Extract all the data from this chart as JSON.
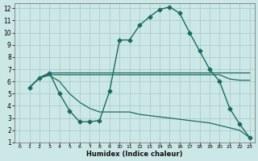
{
  "xlabel": "Humidex (Indice chaleur)",
  "bg_color": "#cce8e6",
  "grid_color": "#aaccca",
  "line_color": "#1a6b60",
  "xlim": [
    -0.5,
    23.5
  ],
  "ylim": [
    1,
    12.4
  ],
  "xticks": [
    0,
    1,
    2,
    3,
    4,
    5,
    6,
    7,
    8,
    9,
    10,
    11,
    12,
    13,
    14,
    15,
    16,
    17,
    18,
    19,
    20,
    21,
    22,
    23
  ],
  "yticks": [
    1,
    2,
    3,
    4,
    5,
    6,
    7,
    8,
    9,
    10,
    11,
    12
  ],
  "series": [
    {
      "x": [
        1,
        2,
        3,
        4,
        5,
        6,
        7,
        8,
        9,
        10,
        11,
        12,
        13,
        14,
        15,
        16,
        17,
        18,
        19,
        20,
        21,
        22,
        23
      ],
      "y": [
        5.5,
        6.3,
        6.7,
        5.0,
        3.6,
        2.7,
        2.7,
        2.8,
        5.2,
        9.4,
        9.4,
        10.6,
        11.3,
        11.9,
        12.1,
        11.6,
        10.0,
        8.5,
        7.0,
        6.0,
        3.8,
        2.5,
        1.4
      ],
      "marker": "D",
      "markersize": 2.5,
      "linewidth": 1.0
    },
    {
      "x": [
        1,
        2,
        3,
        4,
        5,
        6,
        7,
        8,
        9,
        10,
        11,
        12,
        13,
        14,
        15,
        16,
        17,
        18,
        19,
        20,
        21,
        22,
        23
      ],
      "y": [
        5.5,
        6.3,
        6.7,
        6.7,
        6.7,
        6.7,
        6.7,
        6.7,
        6.7,
        6.7,
        6.7,
        6.7,
        6.7,
        6.7,
        6.7,
        6.7,
        6.7,
        6.7,
        6.7,
        6.7,
        6.7,
        6.7,
        6.7
      ],
      "marker": null,
      "markersize": 0,
      "linewidth": 0.9
    },
    {
      "x": [
        1,
        2,
        3,
        4,
        5,
        6,
        7,
        8,
        9,
        10,
        11,
        12,
        13,
        14,
        15,
        16,
        17,
        18,
        19,
        20,
        21,
        22,
        23
      ],
      "y": [
        5.5,
        6.3,
        6.55,
        6.55,
        6.55,
        6.55,
        6.55,
        6.55,
        6.55,
        6.55,
        6.55,
        6.55,
        6.55,
        6.55,
        6.55,
        6.55,
        6.55,
        6.55,
        6.55,
        6.55,
        6.2,
        6.1,
        6.1
      ],
      "marker": null,
      "markersize": 0,
      "linewidth": 0.9
    },
    {
      "x": [
        1,
        2,
        3,
        4,
        5,
        6,
        7,
        8,
        9,
        10,
        11,
        12,
        13,
        14,
        15,
        16,
        17,
        18,
        19,
        20,
        21,
        22,
        23
      ],
      "y": [
        5.5,
        6.3,
        6.5,
        6.0,
        5.0,
        4.3,
        3.8,
        3.5,
        3.5,
        3.5,
        3.5,
        3.3,
        3.2,
        3.1,
        3.0,
        2.9,
        2.8,
        2.7,
        2.6,
        2.4,
        2.2,
        2.0,
        1.4
      ],
      "marker": null,
      "markersize": 0,
      "linewidth": 0.9
    }
  ]
}
